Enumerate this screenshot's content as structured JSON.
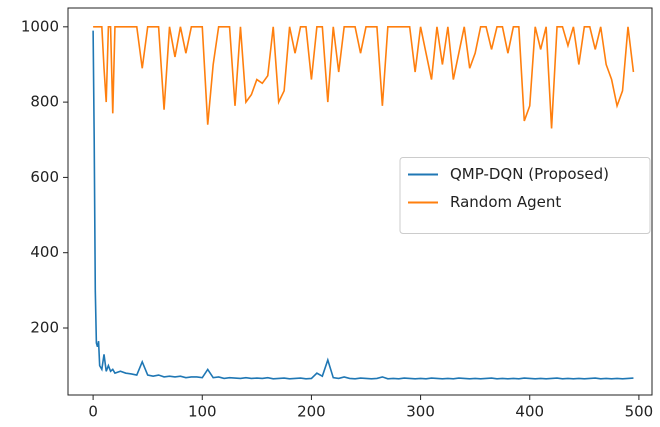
{
  "chart_data": {
    "type": "line",
    "x": [
      0,
      1,
      2,
      3,
      4,
      5,
      6,
      8,
      10,
      12,
      14,
      16,
      18,
      20,
      25,
      30,
      35,
      40,
      45,
      50,
      55,
      60,
      65,
      70,
      75,
      80,
      85,
      90,
      95,
      100,
      105,
      110,
      115,
      120,
      125,
      130,
      135,
      140,
      145,
      150,
      155,
      160,
      165,
      170,
      175,
      180,
      185,
      190,
      195,
      200,
      205,
      210,
      215,
      220,
      225,
      230,
      235,
      240,
      245,
      250,
      255,
      260,
      265,
      270,
      275,
      280,
      285,
      290,
      295,
      300,
      305,
      310,
      315,
      320,
      325,
      330,
      335,
      340,
      345,
      350,
      355,
      360,
      365,
      370,
      375,
      380,
      385,
      390,
      395,
      400,
      405,
      410,
      415,
      420,
      425,
      430,
      435,
      440,
      445,
      450,
      455,
      460,
      465,
      470,
      475,
      480,
      485,
      490,
      495
    ],
    "series": [
      {
        "name": "QMP-DQN (Proposed)",
        "color": "#1f77b4",
        "values": [
          990,
          700,
          300,
          160,
          150,
          165,
          100,
          90,
          130,
          85,
          100,
          85,
          90,
          80,
          85,
          80,
          78,
          75,
          110,
          75,
          72,
          75,
          70,
          72,
          70,
          72,
          68,
          70,
          70,
          68,
          90,
          68,
          70,
          66,
          68,
          67,
          66,
          68,
          66,
          67,
          66,
          68,
          65,
          66,
          67,
          65,
          66,
          67,
          65,
          66,
          80,
          72,
          115,
          68,
          66,
          70,
          66,
          65,
          67,
          66,
          65,
          66,
          70,
          65,
          66,
          65,
          67,
          66,
          65,
          66,
          65,
          67,
          66,
          65,
          66,
          65,
          67,
          66,
          65,
          66,
          65,
          66,
          67,
          65,
          66,
          65,
          66,
          65,
          67,
          66,
          65,
          66,
          65,
          66,
          67,
          65,
          66,
          65,
          66,
          65,
          66,
          67,
          65,
          66,
          65,
          66,
          65,
          66,
          67
        ]
      },
      {
        "name": "Random Agent",
        "color": "#ff7f0e",
        "values": [
          1000,
          1000,
          1000,
          1000,
          1000,
          1000,
          1000,
          1000,
          890,
          800,
          1000,
          1000,
          770,
          1000,
          1000,
          1000,
          1000,
          1000,
          890,
          1000,
          1000,
          1000,
          780,
          1000,
          920,
          1000,
          930,
          1000,
          1000,
          1000,
          740,
          900,
          1000,
          1000,
          1000,
          790,
          1000,
          800,
          820,
          860,
          850,
          870,
          1000,
          800,
          830,
          1000,
          930,
          1000,
          1000,
          860,
          1000,
          1000,
          800,
          1000,
          880,
          1000,
          1000,
          1000,
          930,
          1000,
          1000,
          1000,
          790,
          1000,
          1000,
          1000,
          1000,
          1000,
          880,
          1000,
          930,
          860,
          1000,
          900,
          1000,
          860,
          930,
          1000,
          890,
          930,
          1000,
          1000,
          940,
          1000,
          1000,
          930,
          1000,
          1000,
          750,
          790,
          1000,
          940,
          1000,
          730,
          1000,
          1000,
          950,
          1000,
          900,
          1000,
          1000,
          940,
          1000,
          900,
          860,
          790,
          830,
          1000,
          880
        ]
      }
    ],
    "xlim": [
      -23,
      512
    ],
    "ylim": [
      22,
      1050
    ],
    "xticks": [
      0,
      100,
      200,
      300,
      400,
      500
    ],
    "yticks": [
      200,
      400,
      600,
      800,
      1000
    ],
    "grid": false,
    "legend": "center right"
  }
}
